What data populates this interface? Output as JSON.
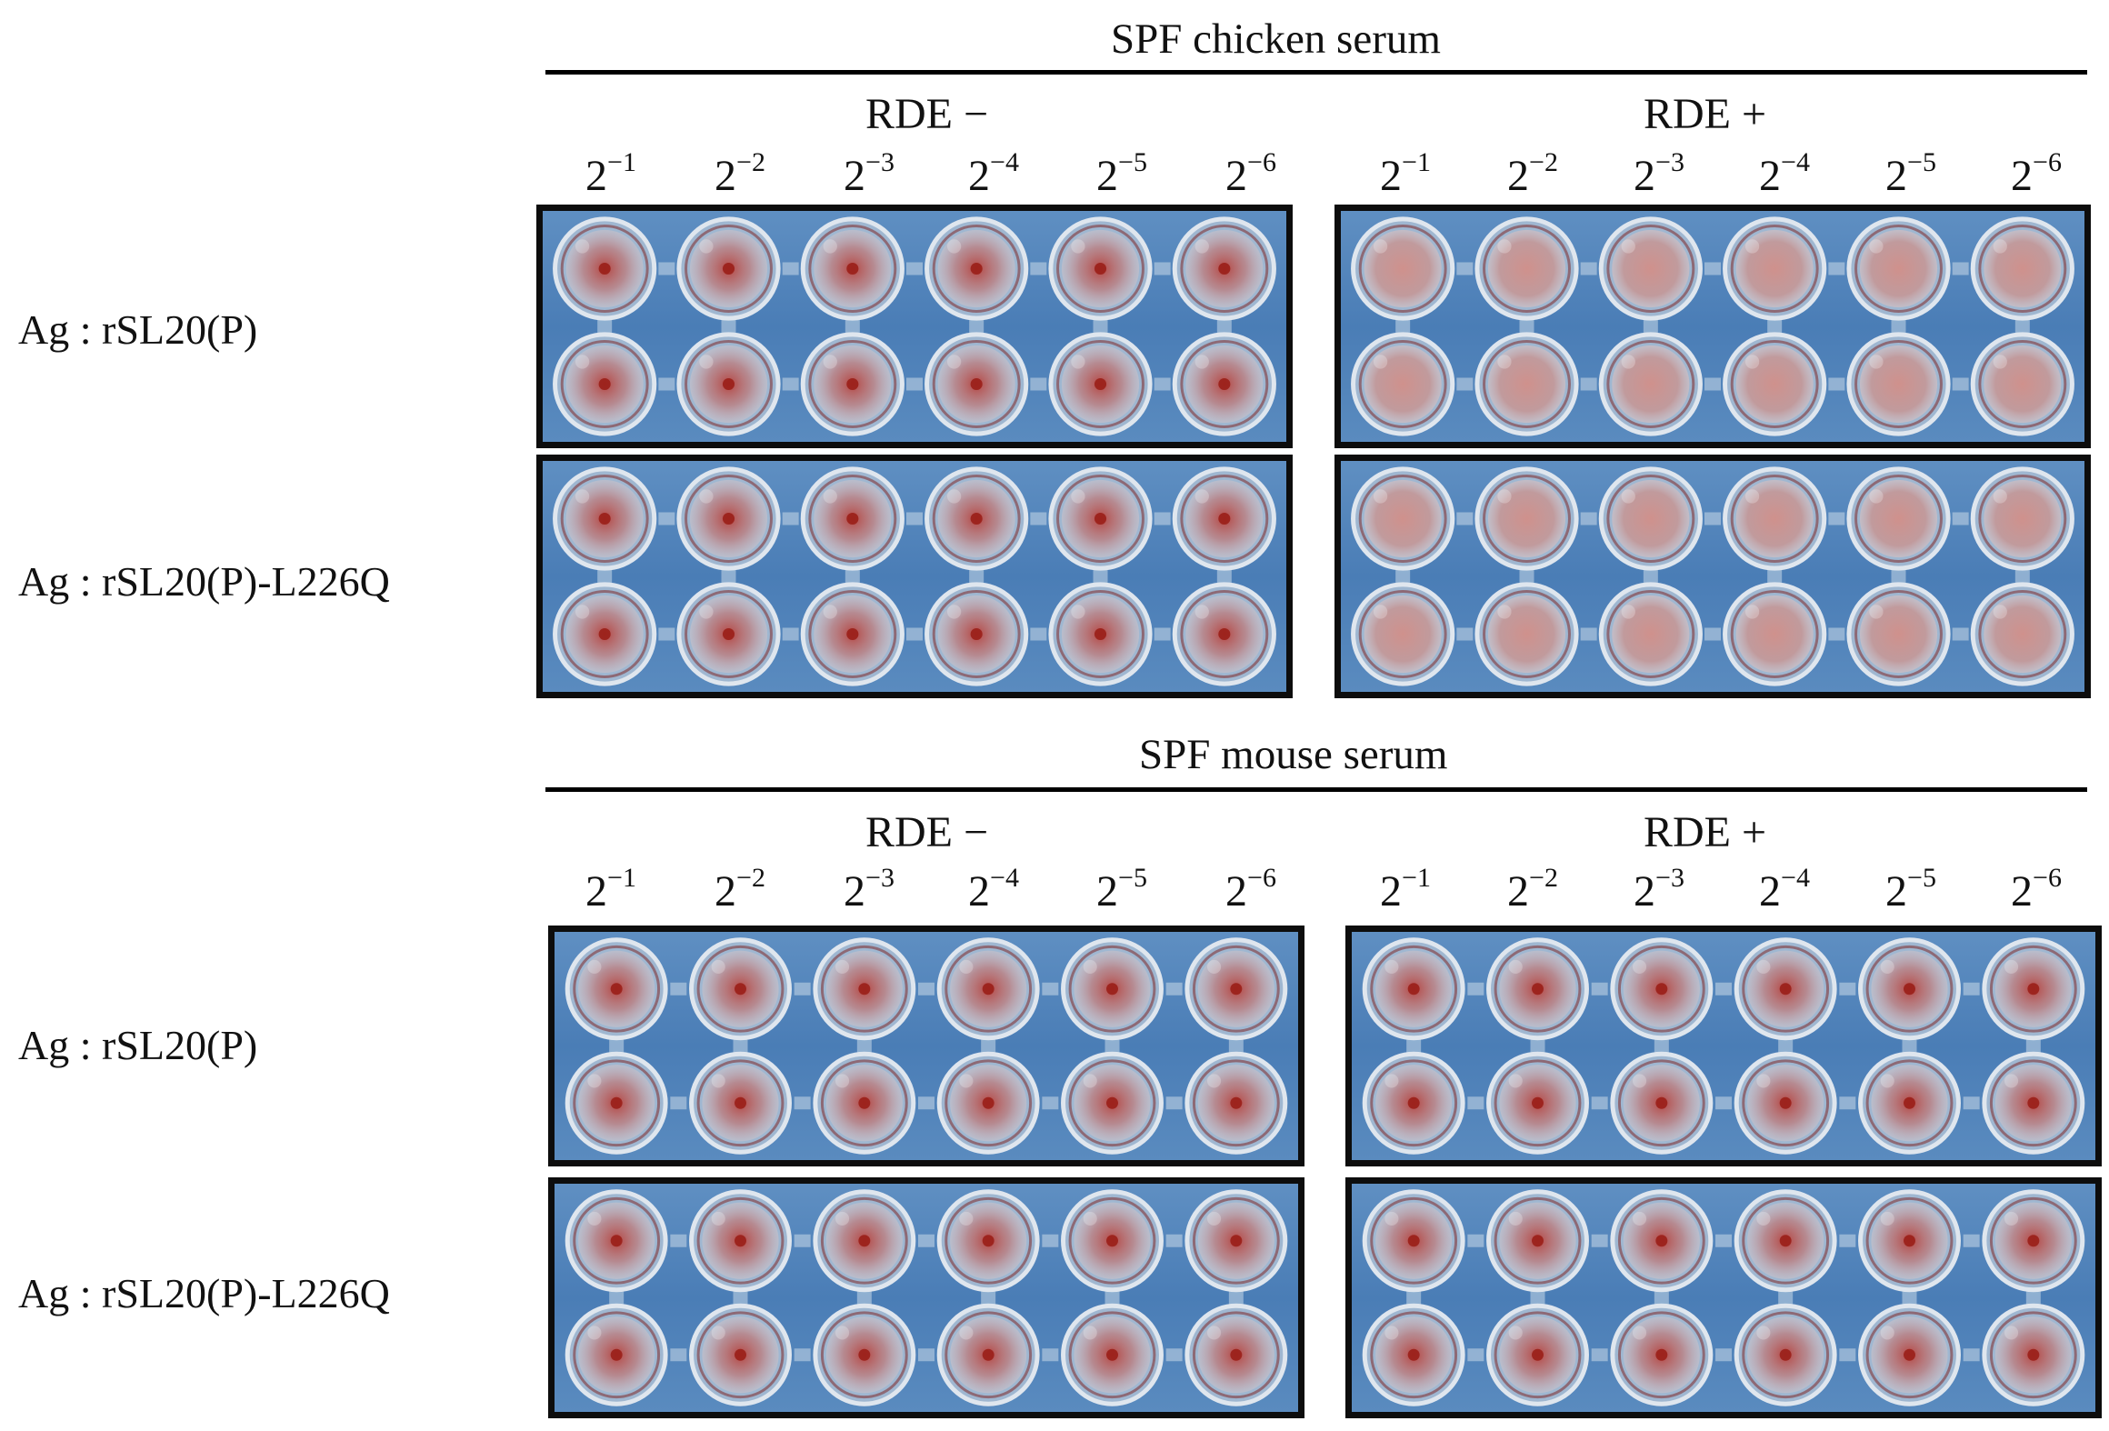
{
  "colors": {
    "plate_background": "#4e80b9",
    "well_rim": "#dfe6ee",
    "cell_red": "#b8322a",
    "button_dark": "#9a1f18",
    "diffuse_pink": "#d88a80"
  },
  "sections": [
    {
      "title": "SPF chicken serum",
      "groups": [
        {
          "label": "RDE −",
          "dilutions": [
            {
              "base": "2",
              "exp": "−1"
            },
            {
              "base": "2",
              "exp": "−2"
            },
            {
              "base": "2",
              "exp": "−3"
            },
            {
              "base": "2",
              "exp": "−4"
            },
            {
              "base": "2",
              "exp": "−5"
            },
            {
              "base": "2",
              "exp": "−6"
            }
          ]
        },
        {
          "label": "RDE +",
          "dilutions": [
            {
              "base": "2",
              "exp": "−1"
            },
            {
              "base": "2",
              "exp": "−2"
            },
            {
              "base": "2",
              "exp": "−3"
            },
            {
              "base": "2",
              "exp": "−4"
            },
            {
              "base": "2",
              "exp": "−5"
            },
            {
              "base": "2",
              "exp": "−6"
            }
          ]
        }
      ],
      "rows": [
        "Ag : rSL20(P)",
        "Ag : rSL20(P)-L226Q"
      ]
    },
    {
      "title": "SPF mouse serum",
      "groups": [
        {
          "label": "RDE −",
          "dilutions": [
            {
              "base": "2",
              "exp": "−1"
            },
            {
              "base": "2",
              "exp": "−2"
            },
            {
              "base": "2",
              "exp": "−3"
            },
            {
              "base": "2",
              "exp": "−4"
            },
            {
              "base": "2",
              "exp": "−5"
            },
            {
              "base": "2",
              "exp": "−6"
            }
          ]
        },
        {
          "label": "RDE +",
          "dilutions": [
            {
              "base": "2",
              "exp": "−1"
            },
            {
              "base": "2",
              "exp": "−2"
            },
            {
              "base": "2",
              "exp": "−3"
            },
            {
              "base": "2",
              "exp": "−4"
            },
            {
              "base": "2",
              "exp": "−5"
            },
            {
              "base": "2",
              "exp": "−6"
            }
          ]
        }
      ],
      "rows": [
        "Ag : rSL20(P)",
        "Ag : rSL20(P)-L226Q"
      ]
    }
  ]
}
